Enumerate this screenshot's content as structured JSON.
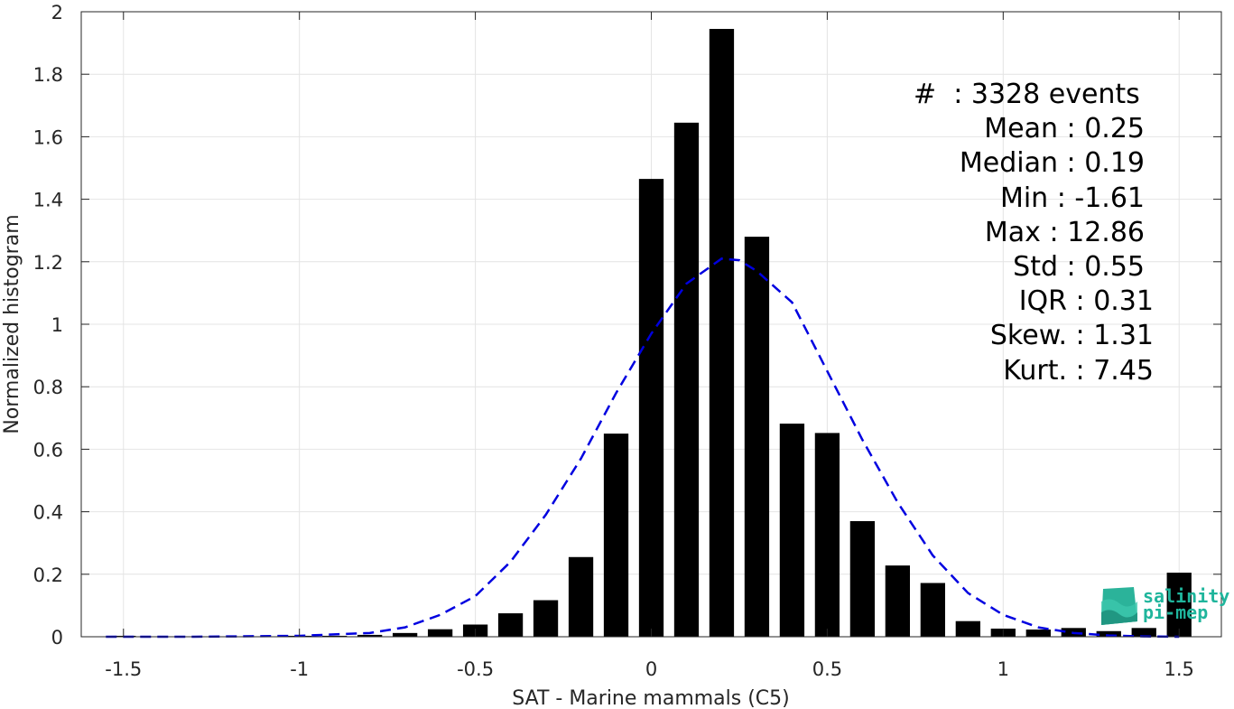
{
  "chart_data": {
    "type": "bar",
    "xlabel": "SAT - Marine mammals (C5)",
    "ylabel": "Normalized histogram",
    "xlim": [
      -1.62,
      1.62
    ],
    "ylim": [
      0,
      2
    ],
    "x_ticks": [
      -1.5,
      -1,
      -0.5,
      0,
      0.5,
      1,
      1.5
    ],
    "x_tick_labels": [
      "-1.5",
      "-1",
      "-0.5",
      "0",
      "0.5",
      "1",
      "1.5"
    ],
    "y_ticks": [
      0,
      0.2,
      0.4,
      0.6,
      0.8,
      1,
      1.2,
      1.4,
      1.6,
      1.8,
      2
    ],
    "y_tick_labels": [
      "0",
      "0.2",
      "0.4",
      "0.6",
      "0.8",
      "1",
      "1.2",
      "1.4",
      "1.6",
      "1.8",
      "2"
    ],
    "grid": true,
    "bar_color": "#000000",
    "fit_color": "#0000e0",
    "bars": {
      "x": [
        -1.5,
        -1.4,
        -1.3,
        -1.2,
        -1.1,
        -1.0,
        -0.9,
        -0.8,
        -0.7,
        -0.6,
        -0.5,
        -0.4,
        -0.3,
        -0.2,
        -0.1,
        0.0,
        0.1,
        0.2,
        0.3,
        0.4,
        0.5,
        0.6,
        0.7,
        0.8,
        0.9,
        1.0,
        1.1,
        1.2,
        1.3,
        1.4,
        1.5
      ],
      "values": [
        0.003,
        0.0,
        0.0,
        0.0,
        0.0,
        0.003,
        0.003,
        0.006,
        0.012,
        0.024,
        0.039,
        0.075,
        0.117,
        0.255,
        0.65,
        1.465,
        1.645,
        1.945,
        1.28,
        0.682,
        0.652,
        0.37,
        0.228,
        0.172,
        0.05,
        0.026,
        0.023,
        0.028,
        0.018,
        0.028,
        0.205
      ]
    },
    "fit": {
      "style": "dashed",
      "x": [
        -1.55,
        -1.3,
        -1.0,
        -0.8,
        -0.7,
        -0.6,
        -0.5,
        -0.4,
        -0.3,
        -0.2,
        -0.1,
        0.0,
        0.1,
        0.2,
        0.25,
        0.3,
        0.4,
        0.5,
        0.6,
        0.7,
        0.8,
        0.9,
        1.0,
        1.1,
        1.2,
        1.3,
        1.4,
        1.5
      ],
      "y": [
        0.0,
        0.0,
        0.003,
        0.012,
        0.03,
        0.07,
        0.13,
        0.24,
        0.39,
        0.57,
        0.78,
        0.97,
        1.13,
        1.21,
        1.205,
        1.17,
        1.07,
        0.85,
        0.63,
        0.43,
        0.26,
        0.14,
        0.07,
        0.03,
        0.012,
        0.004,
        0.001,
        0.0
      ]
    }
  },
  "stats": {
    "count_line": "#  : 3328 events",
    "mean_line": "Mean : 0.25",
    "median_line": "Median : 0.19",
    "min_line": "Min : -1.61",
    "max_line": "Max : 12.86",
    "std_line": "Std : 0.55",
    "iqr_line": "IQR : 0.31",
    "skew_line": "Skew. : 1.31",
    "kurt_line": "Kurt. : 7.45"
  },
  "logo": {
    "line1": "salinity",
    "line2": "pi-mep",
    "color": "#1fb59c"
  }
}
